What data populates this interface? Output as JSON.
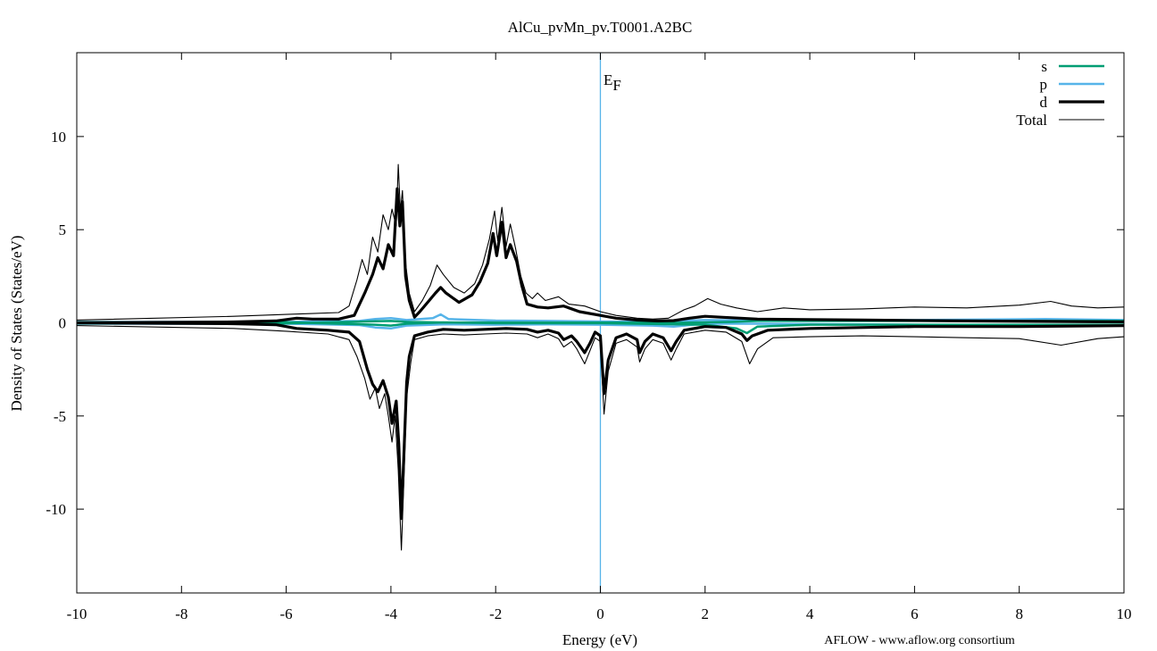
{
  "chart_data": {
    "type": "line",
    "title": "AlCu_pvMn_pv.T0001.A2BC",
    "xlabel": "Energy (eV)",
    "ylabel": "Density of States (States/eV)",
    "xlim": [
      -10,
      10
    ],
    "ylim": [
      -14.5,
      14.5
    ],
    "x_ticks": [
      -10,
      -8,
      -6,
      -4,
      -2,
      0,
      2,
      4,
      6,
      8,
      10
    ],
    "x_tick_labels": [
      "-10",
      "-8",
      "-6",
      "-4",
      "-2",
      "0",
      "2",
      "4",
      "6",
      "8",
      "10"
    ],
    "y_ticks": [
      -10,
      -5,
      0,
      5,
      10
    ],
    "y_tick_labels": [
      "-10",
      "-5",
      "0",
      "5",
      "10"
    ],
    "grid": false,
    "legend_position": "top-right",
    "fermi_level": {
      "x": 0,
      "label_main": "E",
      "label_sub": "F",
      "color": "#56b4e9"
    },
    "credit": "AFLOW - www.aflow.org consortium",
    "series": [
      {
        "name": "s",
        "color": "#009e73",
        "width": 2.5,
        "up": [
          [
            -10,
            0.03
          ],
          [
            -6,
            0.03
          ],
          [
            -4.3,
            -0.1
          ],
          [
            -4,
            -0.15
          ],
          [
            -3.7,
            -0.05
          ],
          [
            -3,
            0.02
          ],
          [
            -1,
            0.01
          ],
          [
            0,
            0.01
          ],
          [
            1.5,
            0.0
          ],
          [
            2.5,
            0.05
          ],
          [
            3,
            0.1
          ],
          [
            10,
            0.1
          ]
        ],
        "down": [
          [
            -10,
            -0.03
          ],
          [
            -6,
            -0.03
          ],
          [
            -4.3,
            0.08
          ],
          [
            -4,
            0.1
          ],
          [
            -3.7,
            0.05
          ],
          [
            -2,
            -0.02
          ],
          [
            0,
            -0.02
          ],
          [
            2,
            -0.1
          ],
          [
            2.6,
            -0.3
          ],
          [
            2.8,
            -0.55
          ],
          [
            3.0,
            -0.2
          ],
          [
            4,
            -0.1
          ],
          [
            10,
            -0.1
          ]
        ]
      },
      {
        "name": "p",
        "color": "#56b4e9",
        "width": 2.5,
        "up": [
          [
            -10,
            0.05
          ],
          [
            -6,
            0.05
          ],
          [
            -4.6,
            0.1
          ],
          [
            -4.3,
            0.2
          ],
          [
            -4,
            0.25
          ],
          [
            -3.7,
            0.15
          ],
          [
            -3.2,
            0.25
          ],
          [
            -3.05,
            0.45
          ],
          [
            -2.9,
            0.2
          ],
          [
            -2,
            0.12
          ],
          [
            -1,
            0.1
          ],
          [
            0,
            0.07
          ],
          [
            1,
            0.05
          ],
          [
            2,
            0.15
          ],
          [
            3,
            0.12
          ],
          [
            6,
            0.15
          ],
          [
            8.5,
            0.2
          ],
          [
            10,
            0.15
          ]
        ],
        "down": [
          [
            -10,
            -0.05
          ],
          [
            -6,
            -0.05
          ],
          [
            -4.6,
            -0.12
          ],
          [
            -4.3,
            -0.25
          ],
          [
            -4,
            -0.3
          ],
          [
            -3.7,
            -0.15
          ],
          [
            -3,
            -0.08
          ],
          [
            -2,
            -0.1
          ],
          [
            -1,
            -0.08
          ],
          [
            0,
            -0.1
          ],
          [
            1,
            -0.15
          ],
          [
            1.4,
            -0.2
          ],
          [
            2,
            -0.05
          ],
          [
            3,
            -0.05
          ],
          [
            6,
            -0.1
          ],
          [
            8.5,
            -0.15
          ],
          [
            10,
            -0.12
          ]
        ]
      },
      {
        "name": "d",
        "color": "#000000",
        "width": 3.2,
        "up": [
          [
            -10,
            0.0
          ],
          [
            -7,
            0.05
          ],
          [
            -6.2,
            0.1
          ],
          [
            -5.8,
            0.25
          ],
          [
            -5.5,
            0.2
          ],
          [
            -5,
            0.2
          ],
          [
            -4.7,
            0.4
          ],
          [
            -4.5,
            1.6
          ],
          [
            -4.35,
            2.6
          ],
          [
            -4.25,
            3.5
          ],
          [
            -4.15,
            2.9
          ],
          [
            -4.05,
            4.2
          ],
          [
            -3.95,
            3.6
          ],
          [
            -3.88,
            7.2
          ],
          [
            -3.83,
            5.2
          ],
          [
            -3.78,
            6.5
          ],
          [
            -3.72,
            2.5
          ],
          [
            -3.65,
            1.2
          ],
          [
            -3.55,
            0.3
          ],
          [
            -3.45,
            0.6
          ],
          [
            -3.3,
            1.1
          ],
          [
            -3.15,
            1.6
          ],
          [
            -3.05,
            1.9
          ],
          [
            -2.95,
            1.6
          ],
          [
            -2.7,
            1.1
          ],
          [
            -2.45,
            1.5
          ],
          [
            -2.3,
            2.2
          ],
          [
            -2.15,
            3.2
          ],
          [
            -2.05,
            4.8
          ],
          [
            -1.98,
            3.6
          ],
          [
            -1.88,
            5.4
          ],
          [
            -1.8,
            3.5
          ],
          [
            -1.72,
            4.2
          ],
          [
            -1.6,
            3.3
          ],
          [
            -1.5,
            2.0
          ],
          [
            -1.4,
            1.0
          ],
          [
            -1.2,
            0.85
          ],
          [
            -1.0,
            0.8
          ],
          [
            -0.7,
            0.9
          ],
          [
            -0.4,
            0.6
          ],
          [
            0,
            0.4
          ],
          [
            0.3,
            0.25
          ],
          [
            0.7,
            0.15
          ],
          [
            1.1,
            0.1
          ],
          [
            1.4,
            0.12
          ],
          [
            1.7,
            0.25
          ],
          [
            2.0,
            0.35
          ],
          [
            2.3,
            0.3
          ],
          [
            3,
            0.2
          ],
          [
            5,
            0.15
          ],
          [
            7,
            0.1
          ],
          [
            10,
            0.05
          ]
        ],
        "down": [
          [
            -10,
            0.0
          ],
          [
            -7,
            -0.05
          ],
          [
            -6.2,
            -0.1
          ],
          [
            -5.8,
            -0.3
          ],
          [
            -5.2,
            -0.4
          ],
          [
            -4.8,
            -0.5
          ],
          [
            -4.6,
            -1.0
          ],
          [
            -4.45,
            -2.5
          ],
          [
            -4.35,
            -3.3
          ],
          [
            -4.25,
            -3.7
          ],
          [
            -4.15,
            -3.1
          ],
          [
            -4.05,
            -4.0
          ],
          [
            -3.98,
            -5.4
          ],
          [
            -3.9,
            -4.2
          ],
          [
            -3.85,
            -6.5
          ],
          [
            -3.8,
            -10.5
          ],
          [
            -3.76,
            -7.6
          ],
          [
            -3.7,
            -3.2
          ],
          [
            -3.65,
            -1.8
          ],
          [
            -3.55,
            -0.7
          ],
          [
            -3.3,
            -0.5
          ],
          [
            -3.0,
            -0.35
          ],
          [
            -2.6,
            -0.4
          ],
          [
            -2.2,
            -0.35
          ],
          [
            -1.8,
            -0.3
          ],
          [
            -1.4,
            -0.35
          ],
          [
            -1.2,
            -0.5
          ],
          [
            -1.0,
            -0.4
          ],
          [
            -0.8,
            -0.55
          ],
          [
            -0.7,
            -0.9
          ],
          [
            -0.55,
            -0.7
          ],
          [
            -0.45,
            -1.0
          ],
          [
            -0.3,
            -1.6
          ],
          [
            -0.2,
            -1.1
          ],
          [
            -0.1,
            -0.5
          ],
          [
            0.0,
            -0.7
          ],
          [
            0.07,
            -3.8
          ],
          [
            0.15,
            -2.0
          ],
          [
            0.3,
            -0.8
          ],
          [
            0.5,
            -0.6
          ],
          [
            0.7,
            -0.9
          ],
          [
            0.75,
            -1.6
          ],
          [
            0.85,
            -1.0
          ],
          [
            1.0,
            -0.6
          ],
          [
            1.2,
            -0.8
          ],
          [
            1.35,
            -1.5
          ],
          [
            1.45,
            -1.0
          ],
          [
            1.6,
            -0.4
          ],
          [
            2.0,
            -0.2
          ],
          [
            2.4,
            -0.25
          ],
          [
            2.7,
            -0.6
          ],
          [
            2.8,
            -0.95
          ],
          [
            2.9,
            -0.7
          ],
          [
            3.2,
            -0.4
          ],
          [
            4,
            -0.3
          ],
          [
            6,
            -0.2
          ],
          [
            8,
            -0.2
          ],
          [
            10,
            -0.15
          ]
        ]
      },
      {
        "name": "Total",
        "color": "#000000",
        "width": 1.1,
        "up": [
          [
            -10,
            0.15
          ],
          [
            -7,
            0.35
          ],
          [
            -6,
            0.45
          ],
          [
            -5.5,
            0.5
          ],
          [
            -5,
            0.55
          ],
          [
            -4.8,
            0.9
          ],
          [
            -4.65,
            2.3
          ],
          [
            -4.55,
            3.4
          ],
          [
            -4.45,
            2.6
          ],
          [
            -4.35,
            4.6
          ],
          [
            -4.25,
            3.8
          ],
          [
            -4.15,
            5.8
          ],
          [
            -4.05,
            5.0
          ],
          [
            -3.98,
            6.1
          ],
          [
            -3.9,
            5.2
          ],
          [
            -3.86,
            8.5
          ],
          [
            -3.82,
            6.0
          ],
          [
            -3.78,
            7.1
          ],
          [
            -3.72,
            3.2
          ],
          [
            -3.65,
            1.6
          ],
          [
            -3.55,
            0.6
          ],
          [
            -3.4,
            1.2
          ],
          [
            -3.25,
            2.0
          ],
          [
            -3.12,
            3.1
          ],
          [
            -3.0,
            2.6
          ],
          [
            -2.8,
            1.9
          ],
          [
            -2.6,
            1.6
          ],
          [
            -2.4,
            2.1
          ],
          [
            -2.25,
            3.1
          ],
          [
            -2.12,
            4.5
          ],
          [
            -2.02,
            6.0
          ],
          [
            -1.96,
            4.4
          ],
          [
            -1.88,
            6.2
          ],
          [
            -1.8,
            4.1
          ],
          [
            -1.72,
            5.3
          ],
          [
            -1.62,
            4.0
          ],
          [
            -1.52,
            2.5
          ],
          [
            -1.42,
            1.6
          ],
          [
            -1.3,
            1.3
          ],
          [
            -1.2,
            1.6
          ],
          [
            -1.05,
            1.2
          ],
          [
            -0.8,
            1.4
          ],
          [
            -0.6,
            1.0
          ],
          [
            -0.3,
            0.9
          ],
          [
            0,
            0.6
          ],
          [
            0.3,
            0.4
          ],
          [
            0.7,
            0.25
          ],
          [
            1.0,
            0.2
          ],
          [
            1.3,
            0.25
          ],
          [
            1.6,
            0.7
          ],
          [
            1.8,
            0.9
          ],
          [
            2.05,
            1.3
          ],
          [
            2.3,
            1.0
          ],
          [
            2.6,
            0.8
          ],
          [
            3,
            0.6
          ],
          [
            3.5,
            0.8
          ],
          [
            4,
            0.7
          ],
          [
            5,
            0.75
          ],
          [
            6,
            0.85
          ],
          [
            7,
            0.8
          ],
          [
            8,
            0.95
          ],
          [
            8.6,
            1.15
          ],
          [
            9,
            0.9
          ],
          [
            9.5,
            0.8
          ],
          [
            10,
            0.85
          ]
        ],
        "down": [
          [
            -10,
            -0.15
          ],
          [
            -7,
            -0.3
          ],
          [
            -6,
            -0.45
          ],
          [
            -5.2,
            -0.6
          ],
          [
            -4.8,
            -0.9
          ],
          [
            -4.65,
            -1.8
          ],
          [
            -4.5,
            -3.0
          ],
          [
            -4.4,
            -4.1
          ],
          [
            -4.3,
            -3.5
          ],
          [
            -4.22,
            -4.6
          ],
          [
            -4.12,
            -3.8
          ],
          [
            -4.05,
            -5.0
          ],
          [
            -3.98,
            -6.4
          ],
          [
            -3.92,
            -5.0
          ],
          [
            -3.86,
            -7.9
          ],
          [
            -3.8,
            -12.2
          ],
          [
            -3.76,
            -9.0
          ],
          [
            -3.7,
            -4.0
          ],
          [
            -3.62,
            -2.1
          ],
          [
            -3.55,
            -0.9
          ],
          [
            -3.3,
            -0.7
          ],
          [
            -3.0,
            -0.6
          ],
          [
            -2.6,
            -0.65
          ],
          [
            -2.2,
            -0.6
          ],
          [
            -1.8,
            -0.55
          ],
          [
            -1.4,
            -0.6
          ],
          [
            -1.2,
            -0.8
          ],
          [
            -1.0,
            -0.6
          ],
          [
            -0.8,
            -0.85
          ],
          [
            -0.7,
            -1.3
          ],
          [
            -0.55,
            -1.0
          ],
          [
            -0.45,
            -1.4
          ],
          [
            -0.3,
            -2.2
          ],
          [
            -0.2,
            -1.5
          ],
          [
            -0.1,
            -0.8
          ],
          [
            0.0,
            -1.0
          ],
          [
            0.07,
            -4.9
          ],
          [
            0.15,
            -2.6
          ],
          [
            0.3,
            -1.1
          ],
          [
            0.5,
            -0.9
          ],
          [
            0.7,
            -1.3
          ],
          [
            0.75,
            -2.1
          ],
          [
            0.85,
            -1.4
          ],
          [
            1.0,
            -0.9
          ],
          [
            1.2,
            -1.1
          ],
          [
            1.35,
            -2.0
          ],
          [
            1.45,
            -1.4
          ],
          [
            1.6,
            -0.6
          ],
          [
            2.0,
            -0.4
          ],
          [
            2.4,
            -0.5
          ],
          [
            2.7,
            -1.0
          ],
          [
            2.85,
            -2.2
          ],
          [
            3.0,
            -1.4
          ],
          [
            3.3,
            -0.8
          ],
          [
            4,
            -0.75
          ],
          [
            5,
            -0.7
          ],
          [
            6,
            -0.75
          ],
          [
            7,
            -0.8
          ],
          [
            8,
            -0.85
          ],
          [
            8.8,
            -1.2
          ],
          [
            9.5,
            -0.85
          ],
          [
            10,
            -0.75
          ]
        ]
      }
    ]
  }
}
